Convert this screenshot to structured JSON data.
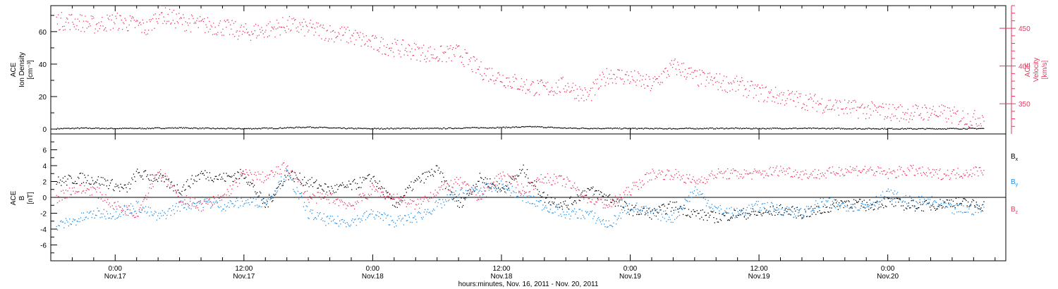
{
  "chart_data": [
    {
      "type": "scatter",
      "panel": "top",
      "ylabel_left": [
        "ACE",
        "Ion Density",
        "[cm⁻³]"
      ],
      "ylabel_right": [
        "ACE",
        "Velocity",
        "[km/s]"
      ],
      "ylim_left": [
        -3,
        76
      ],
      "ylim_right": [
        310,
        480
      ],
      "yticks_left": [
        "0",
        "20",
        "40",
        "60"
      ],
      "yticks_right": [
        "350",
        "400",
        "450"
      ],
      "series": [
        {
          "name": "",
          "axis": "left",
          "color": "#000000",
          "points": [
            [
              -5.5,
              0.5
            ],
            [
              -3,
              0.8
            ],
            [
              0,
              0.6
            ],
            [
              3,
              0.7
            ],
            [
              6,
              1.0
            ],
            [
              9,
              0.6
            ],
            [
              12,
              0.5
            ],
            [
              15,
              0.8
            ],
            [
              18,
              1.5
            ],
            [
              21,
              0.7
            ],
            [
              24,
              0.5
            ],
            [
              27,
              0.7
            ],
            [
              30,
              0.6
            ],
            [
              33,
              1.0
            ],
            [
              36,
              1.2
            ],
            [
              39,
              1.7
            ],
            [
              42,
              0.8
            ],
            [
              45,
              0.7
            ],
            [
              48,
              0.6
            ],
            [
              51,
              0.5
            ],
            [
              54,
              0.6
            ],
            [
              57,
              0.7
            ],
            [
              60,
              0.6
            ],
            [
              63,
              0.7
            ],
            [
              66,
              0.6
            ],
            [
              69,
              0.5
            ],
            [
              72,
              0.5
            ],
            [
              75,
              0.4
            ],
            [
              78,
              0.5
            ],
            [
              81,
              0.6
            ]
          ]
        },
        {
          "name": "",
          "axis": "right",
          "color": "#e8385f",
          "points": [
            [
              -5.5,
              460
            ],
            [
              -4,
              460
            ],
            [
              -2,
              455
            ],
            [
              0,
              460
            ],
            [
              2,
              455
            ],
            [
              3,
              450
            ],
            [
              4,
              470
            ],
            [
              5,
              465
            ],
            [
              6,
              460
            ],
            [
              8,
              455
            ],
            [
              10,
              452
            ],
            [
              12,
              445
            ],
            [
              14,
              448
            ],
            [
              16,
              455
            ],
            [
              18,
              450
            ],
            [
              20,
              445
            ],
            [
              22,
              440
            ],
            [
              24,
              430
            ],
            [
              26,
              425
            ],
            [
              28,
              420
            ],
            [
              30,
              415
            ],
            [
              32,
              418
            ],
            [
              33,
              405
            ],
            [
              34,
              395
            ],
            [
              36,
              385
            ],
            [
              38,
              375
            ],
            [
              40,
              370
            ],
            [
              42,
              375
            ],
            [
              44,
              360
            ],
            [
              46,
              390
            ],
            [
              48,
              385
            ],
            [
              50,
              375
            ],
            [
              52,
              400
            ],
            [
              53,
              395
            ],
            [
              54,
              385
            ],
            [
              56,
              380
            ],
            [
              58,
              375
            ],
            [
              60,
              365
            ],
            [
              62,
              360
            ],
            [
              64,
              355
            ],
            [
              66,
              350
            ],
            [
              68,
              345
            ],
            [
              70,
              342
            ],
            [
              72,
              340
            ],
            [
              74,
              338
            ],
            [
              76,
              340
            ],
            [
              78,
              335
            ],
            [
              80,
              330
            ],
            [
              81,
              334
            ]
          ]
        }
      ]
    },
    {
      "type": "scatter",
      "panel": "bottom",
      "ylabel": [
        "ACE",
        "B",
        "[nT]"
      ],
      "ylim": [
        -8,
        8
      ],
      "yticks": [
        "-6",
        "-4",
        "-2",
        "0",
        "2",
        "4",
        "6"
      ],
      "series": [
        {
          "name": "Bx",
          "legend_main": "B",
          "legend_sub": "x",
          "color": "#000000",
          "points": [
            [
              -5.5,
              2
            ],
            [
              -3,
              2.5
            ],
            [
              -1,
              2
            ],
            [
              1,
              1
            ],
            [
              2,
              3
            ],
            [
              4,
              2.5
            ],
            [
              6,
              1
            ],
            [
              8,
              3
            ],
            [
              10,
              2.5
            ],
            [
              12,
              3
            ],
            [
              14,
              -1
            ],
            [
              16,
              3
            ],
            [
              18,
              2
            ],
            [
              20,
              1
            ],
            [
              22,
              1.5
            ],
            [
              24,
              2.5
            ],
            [
              26,
              -1
            ],
            [
              28,
              2
            ],
            [
              30,
              3.5
            ],
            [
              32,
              -1
            ],
            [
              34,
              2.5
            ],
            [
              36,
              1
            ],
            [
              38,
              3.5
            ],
            [
              40,
              0
            ],
            [
              42,
              -1
            ],
            [
              44,
              1
            ],
            [
              46,
              0
            ],
            [
              48,
              -1.5
            ],
            [
              50,
              -2
            ],
            [
              52,
              -1
            ],
            [
              54,
              -2
            ],
            [
              56,
              -2.5
            ],
            [
              58,
              -2
            ],
            [
              60,
              -2
            ],
            [
              62,
              -1.5
            ],
            [
              64,
              -2
            ],
            [
              66,
              -1.5
            ],
            [
              68,
              -0.5
            ],
            [
              70,
              -1
            ],
            [
              72,
              -0.5
            ],
            [
              74,
              -1
            ],
            [
              76,
              -1
            ],
            [
              78,
              -0.5
            ],
            [
              81,
              -1
            ]
          ]
        },
        {
          "name": "By",
          "legend_main": "B",
          "legend_sub": "y",
          "color": "#1f8fe8",
          "points": [
            [
              -5.5,
              -3.5
            ],
            [
              -4,
              -3
            ],
            [
              -2,
              -2
            ],
            [
              0,
              -2
            ],
            [
              2,
              -1
            ],
            [
              4,
              -2.5
            ],
            [
              6,
              -1
            ],
            [
              8,
              -0.5
            ],
            [
              10,
              -1
            ],
            [
              12,
              -0.5
            ],
            [
              14,
              -0.5
            ],
            [
              16,
              3
            ],
            [
              18,
              -2
            ],
            [
              20,
              -3
            ],
            [
              22,
              -3
            ],
            [
              24,
              -2
            ],
            [
              26,
              -3
            ],
            [
              28,
              -2.5
            ],
            [
              30,
              -1
            ],
            [
              32,
              0.5
            ],
            [
              34,
              1
            ],
            [
              36,
              1.5
            ],
            [
              38,
              0
            ],
            [
              40,
              -1
            ],
            [
              42,
              -2
            ],
            [
              44,
              -2
            ],
            [
              46,
              -3.5
            ],
            [
              48,
              -1
            ],
            [
              50,
              -2
            ],
            [
              52,
              -2.5
            ],
            [
              54,
              1
            ],
            [
              56,
              -1.5
            ],
            [
              58,
              -2
            ],
            [
              60,
              -1
            ],
            [
              62,
              -1.5
            ],
            [
              64,
              -2
            ],
            [
              66,
              -0.5
            ],
            [
              68,
              -1
            ],
            [
              70,
              -1
            ],
            [
              72,
              0.5
            ],
            [
              74,
              -0.5
            ],
            [
              76,
              -0.5
            ],
            [
              78,
              -1.5
            ],
            [
              81,
              -1.5
            ]
          ]
        },
        {
          "name": "Bz",
          "legend_main": "B",
          "legend_sub": "z",
          "color": "#e8385f",
          "points": [
            [
              -5.5,
              0
            ],
            [
              -4,
              1
            ],
            [
              -2,
              1
            ],
            [
              0,
              -1
            ],
            [
              2,
              -2
            ],
            [
              4,
              3.5
            ],
            [
              6,
              0
            ],
            [
              8,
              -1
            ],
            [
              10,
              0
            ],
            [
              12,
              3
            ],
            [
              14,
              2.5
            ],
            [
              16,
              4
            ],
            [
              18,
              0
            ],
            [
              20,
              0
            ],
            [
              22,
              -1
            ],
            [
              24,
              1
            ],
            [
              26,
              0
            ],
            [
              28,
              -1
            ],
            [
              30,
              1
            ],
            [
              32,
              2
            ],
            [
              34,
              0
            ],
            [
              36,
              3
            ],
            [
              38,
              1
            ],
            [
              40,
              2.5
            ],
            [
              42,
              2
            ],
            [
              44,
              0
            ],
            [
              46,
              -1
            ],
            [
              48,
              1
            ],
            [
              50,
              3
            ],
            [
              52,
              3
            ],
            [
              54,
              2
            ],
            [
              56,
              3
            ],
            [
              58,
              3
            ],
            [
              60,
              3
            ],
            [
              62,
              3.5
            ],
            [
              64,
              3
            ],
            [
              66,
              3
            ],
            [
              68,
              3.5
            ],
            [
              70,
              3.5
            ],
            [
              72,
              3
            ],
            [
              74,
              3.5
            ],
            [
              76,
              3
            ],
            [
              78,
              3
            ],
            [
              81,
              3.5
            ]
          ]
        }
      ]
    }
  ],
  "x_axis": {
    "xlim": [
      -6,
      83
    ],
    "ticks": [
      {
        "x": 0,
        "label": "0:00",
        "sublabel": "Nov.17"
      },
      {
        "x": 12,
        "label": "12:00",
        "sublabel": "Nov.17"
      },
      {
        "x": 24,
        "label": "0:00",
        "sublabel": "Nov.18"
      },
      {
        "x": 36,
        "label": "12:00",
        "sublabel": "Nov.18"
      },
      {
        "x": 48,
        "label": "0:00",
        "sublabel": "Nov.19"
      },
      {
        "x": 60,
        "label": "12:00",
        "sublabel": "Nov.19"
      },
      {
        "x": 72,
        "label": "0:00",
        "sublabel": "Nov.20"
      }
    ],
    "caption": "hours:minutes, Nov. 16, 2011 - Nov. 20, 2011"
  }
}
